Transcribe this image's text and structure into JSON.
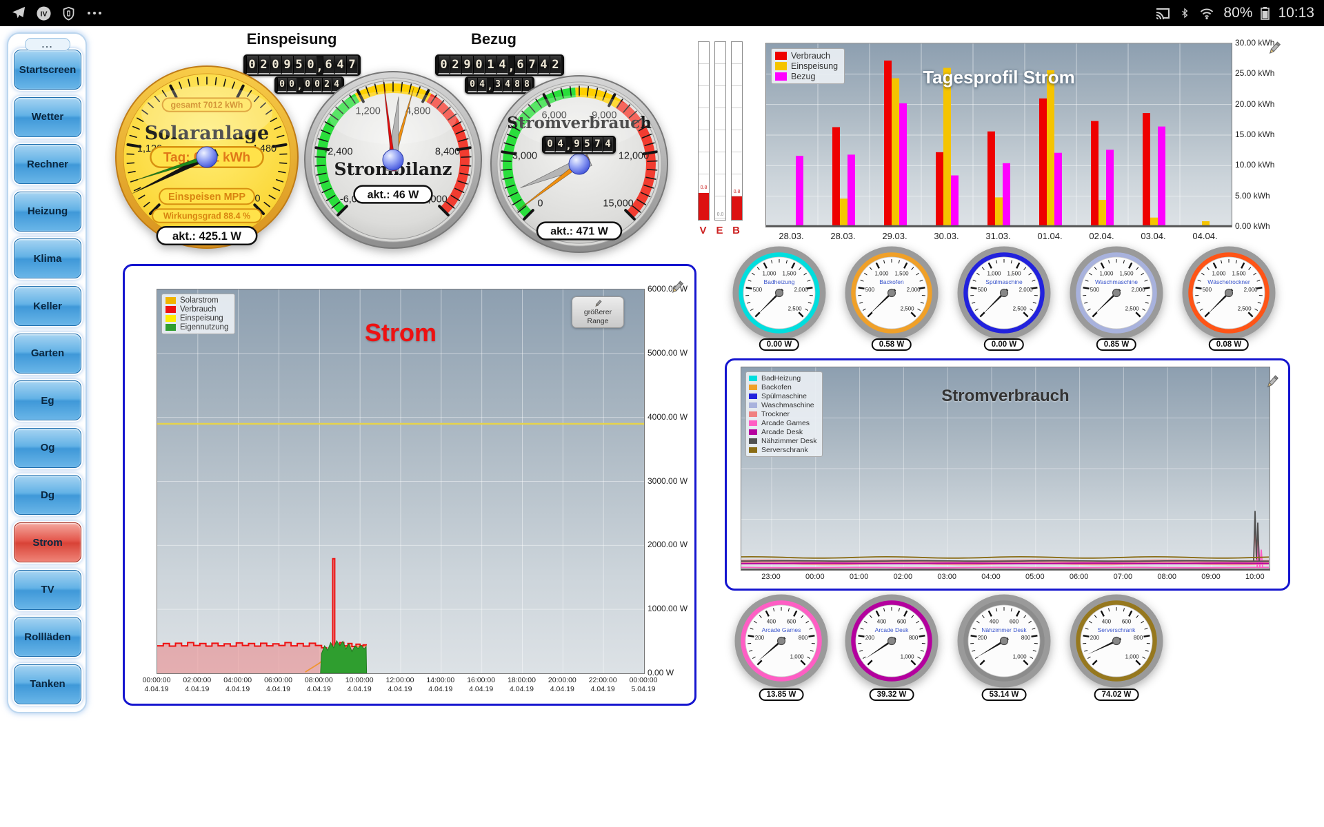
{
  "status_bar": {
    "time": "10:13",
    "battery": "80%",
    "iv_label": "IV",
    "icons_left": [
      "telegram-icon",
      "iv-badge-icon",
      "shield-icon",
      "more-dots-icon"
    ],
    "icons_right": [
      "cast-icon",
      "bluetooth-icon",
      "wifi-icon",
      "battery-icon"
    ]
  },
  "sidebar": {
    "more_label": "...",
    "items": [
      {
        "label": "Startscreen",
        "active": false
      },
      {
        "label": "Wetter",
        "active": false
      },
      {
        "label": "Rechner",
        "active": false
      },
      {
        "label": "Heizung",
        "active": false
      },
      {
        "label": "Klima",
        "active": false
      },
      {
        "label": "Keller",
        "active": false
      },
      {
        "label": "Garten",
        "active": false
      },
      {
        "label": "Eg",
        "active": false
      },
      {
        "label": "Og",
        "active": false
      },
      {
        "label": "Dg",
        "active": false
      },
      {
        "label": "Strom",
        "active": true
      },
      {
        "label": "TV",
        "active": false
      },
      {
        "label": "Rollläden",
        "active": false
      },
      {
        "label": "Tanken",
        "active": false
      }
    ]
  },
  "counters": {
    "einspeisung": {
      "title": "Einspeisung",
      "main": "020950,647",
      "sub": "00,0024"
    },
    "bezug": {
      "title": "Bezug",
      "main": "029014,6742",
      "sub": "04,3488"
    }
  },
  "solar_gauge": {
    "title": "Solaranlage",
    "gesamt": "gesamt 7012 kWh",
    "tag": "Tag: 0.61 kWh",
    "mode": "Einspeisen MPP",
    "wirkungsgrad": "Wirkungsgrad 88.4 %",
    "akt": "akt.: 425.1 W",
    "tick_labels": [
      "0",
      "1,120",
      "2,240",
      "3,360",
      "4,480",
      "5,600"
    ]
  },
  "strombilanz_gauge": {
    "title": "Strombilanz",
    "akt": "akt.: 46 W",
    "tick_labels": [
      "-6,000",
      "-2,400",
      "1,200",
      "4,800",
      "8,400",
      "12,000"
    ]
  },
  "stromverbrauch_gauge": {
    "title": "Stromverbrauch",
    "counter": "04,9574",
    "akt": "akt.: 471 W",
    "tick_labels": [
      "0",
      "3,000",
      "6,000",
      "9,000",
      "12,000",
      "15,000"
    ]
  },
  "mini_bars": {
    "items": [
      {
        "label": "V",
        "value": "0.8",
        "fill_pct": 15
      },
      {
        "label": "E",
        "value": "0.0",
        "fill_pct": 0
      },
      {
        "label": "B",
        "value": "0.8",
        "fill_pct": 13
      }
    ]
  },
  "small_gauges_top": {
    "tick_labels": [
      "500",
      "1,000",
      "1,500",
      "2,000",
      "2,500"
    ],
    "items": [
      {
        "name": "Badheizung",
        "ring": "#00dede",
        "value": "0.00 W",
        "needle_deg": -135
      },
      {
        "name": "Backofen",
        "ring": "#f0a028",
        "value": "0.58 W",
        "needle_deg": -134
      },
      {
        "name": "Spülmaschine",
        "ring": "#2222dd",
        "value": "0.00 W",
        "needle_deg": -135
      },
      {
        "name": "Waschmaschine",
        "ring": "#a8b2dd",
        "value": "0.85 W",
        "needle_deg": -134
      },
      {
        "name": "Wäschetrockner",
        "ring": "#ff5416",
        "value": "0.08 W",
        "needle_deg": -135
      }
    ]
  },
  "small_gauges_bottom": {
    "tick_labels": [
      "200",
      "400",
      "600",
      "800",
      "1,000"
    ],
    "items": [
      {
        "name": "Arcade Games",
        "ring": "#ff5ec4",
        "value": "13.85 W",
        "needle_deg": -131
      },
      {
        "name": "Arcade Desk",
        "ring": "#b4009e",
        "value": "39.32 W",
        "needle_deg": -124
      },
      {
        "name": "Nähzimmer Desk",
        "ring": "#8c8c8c",
        "value": "53.14 W",
        "needle_deg": -121
      },
      {
        "name": "Serverschrank",
        "ring": "#96781e",
        "value": "74.02 W",
        "needle_deg": -115
      }
    ]
  },
  "chart_data": [
    {
      "id": "tagesprofil",
      "type": "bar",
      "title": "Tagesprofil Strom",
      "ylim": [
        0,
        30
      ],
      "ytick_labels": [
        "30.00 kWh",
        "25.00 kWh",
        "20.00 kWh",
        "15.00 kWh",
        "10.00 kWh",
        "5.00 kWh",
        "0.00 kWh"
      ],
      "categories": [
        "28.03.",
        "28.03.",
        "29.03.",
        "30.03.",
        "31.03.",
        "01.04.",
        "02.04.",
        "03.04.",
        "04.04."
      ],
      "legend_position": "top-left",
      "series": [
        {
          "name": "Verbrauch",
          "color": "#ee0000",
          "values": [
            0,
            16.3,
            27.2,
            12.2,
            15.6,
            21.0,
            17.3,
            18.6,
            0
          ]
        },
        {
          "name": "Einspeisung",
          "color": "#f5c400",
          "values": [
            0,
            4.6,
            24.3,
            26.0,
            4.8,
            25.6,
            4.4,
            1.5,
            0.9
          ]
        },
        {
          "name": "Bezug",
          "color": "#ff00ff",
          "values": [
            11.6,
            11.8,
            20.2,
            8.4,
            10.4,
            12.1,
            12.6,
            16.4,
            0
          ]
        }
      ]
    },
    {
      "id": "strom",
      "type": "line",
      "title": "Strom",
      "title_color": "#ee1111",
      "button": "größerer Range",
      "ylim": [
        0,
        6000
      ],
      "ytick_labels": [
        "6000.00 W",
        "5000.00 W",
        "4000.00 W",
        "3000.00 W",
        "2000.00 W",
        "1000.00 W",
        "0.00 W"
      ],
      "xtick_times": [
        "00:00:00",
        "02:00:00",
        "04:00:00",
        "06:00:00",
        "08:00:00",
        "10:00:00",
        "12:00:00",
        "14:00:00",
        "16:00:00",
        "18:00:00",
        "20:00:00",
        "22:00:00",
        "00:00:00"
      ],
      "xtick_dates": [
        "4.04.19",
        "4.04.19",
        "4.04.19",
        "4.04.19",
        "4.04.19",
        "4.04.19",
        "4.04.19",
        "4.04.19",
        "4.04.19",
        "4.04.19",
        "4.04.19",
        "4.04.19",
        "5.04.19"
      ],
      "series": [
        {
          "name": "Solarstrom",
          "color": "#f0b400",
          "kind": "line",
          "points": [
            [
              7.3,
              20
            ],
            [
              8.0,
              160
            ],
            [
              8.6,
              320
            ],
            [
              9.2,
              410
            ],
            [
              10.3,
              430
            ]
          ]
        },
        {
          "name": "Verbrauch",
          "color": "#ee1111",
          "kind": "step",
          "fill": "rgba(238,110,110,0.45)",
          "points": [
            [
              0,
              430
            ],
            [
              0.3,
              465
            ],
            [
              0.6,
              425
            ],
            [
              0.9,
              470
            ],
            [
              1.2,
              430
            ],
            [
              1.5,
              480
            ],
            [
              1.8,
              435
            ],
            [
              2.1,
              465
            ],
            [
              2.4,
              425
            ],
            [
              2.7,
              470
            ],
            [
              3.0,
              430
            ],
            [
              3.3,
              460
            ],
            [
              3.6,
              425
            ],
            [
              3.9,
              475
            ],
            [
              4.2,
              435
            ],
            [
              4.5,
              465
            ],
            [
              4.8,
              425
            ],
            [
              5.1,
              470
            ],
            [
              5.4,
              430
            ],
            [
              5.7,
              460
            ],
            [
              6.0,
              435
            ],
            [
              6.3,
              480
            ],
            [
              6.6,
              430
            ],
            [
              6.9,
              465
            ],
            [
              7.2,
              425
            ],
            [
              7.5,
              470
            ],
            [
              7.8,
              435
            ],
            [
              8.1,
              400
            ],
            [
              8.35,
              340
            ],
            [
              8.55,
              360
            ],
            [
              8.65,
              1790
            ],
            [
              8.75,
              430
            ],
            [
              9.0,
              480
            ],
            [
              9.2,
              430
            ],
            [
              9.4,
              465
            ],
            [
              9.6,
              420
            ],
            [
              9.8,
              455
            ],
            [
              10.0,
              430
            ],
            [
              10.15,
              445
            ],
            [
              10.3,
              435
            ]
          ]
        },
        {
          "name": "Einspeisung",
          "color": "#e6d34a",
          "kind": "hline",
          "value": 3900
        },
        {
          "name": "Eigennutzung",
          "color": "#2f9e2f",
          "kind": "area",
          "points": [
            [
              8.05,
              0
            ],
            [
              8.1,
              310
            ],
            [
              8.25,
              430
            ],
            [
              8.4,
              360
            ],
            [
              8.55,
              480
            ],
            [
              8.7,
              400
            ],
            [
              8.85,
              510
            ],
            [
              9.0,
              430
            ],
            [
              9.15,
              500
            ],
            [
              9.3,
              380
            ],
            [
              9.45,
              460
            ],
            [
              9.6,
              340
            ],
            [
              9.75,
              430
            ],
            [
              9.9,
              390
            ],
            [
              10.05,
              440
            ],
            [
              10.2,
              380
            ],
            [
              10.3,
              420
            ],
            [
              10.32,
              0
            ]
          ]
        }
      ]
    },
    {
      "id": "stromverbrauch",
      "type": "line",
      "title": "Stromverbrauch",
      "ylim": [
        0,
        1200
      ],
      "xtick_labels": [
        "23:00",
        "00:00",
        "01:00",
        "02:00",
        "03:00",
        "04:00",
        "05:00",
        "06:00",
        "07:00",
        "08:00",
        "09:00",
        "10:00"
      ],
      "series": [
        {
          "name": "BadHeizung",
          "color": "#00dede",
          "watts": 1
        },
        {
          "name": "Backofen",
          "color": "#f0a028",
          "watts": 2
        },
        {
          "name": "Spülmaschine",
          "color": "#2222dd",
          "watts": 1
        },
        {
          "name": "Waschmaschine",
          "color": "#a8b2dd",
          "watts": 3
        },
        {
          "name": "Trockner",
          "color": "#f08080",
          "watts": 45,
          "band": true,
          "end_spike": 280
        },
        {
          "name": "Arcade Games",
          "color": "#ff5ec4",
          "watts": 14,
          "end_spike": 150
        },
        {
          "name": "Arcade Desk",
          "color": "#b4009e",
          "watts": 39
        },
        {
          "name": "Nähzimmer Desk",
          "color": "#505050",
          "watts": 53,
          "end_spike": 350
        },
        {
          "name": "Serverschrank",
          "color": "#8a6c14",
          "watts": 74,
          "wobble": 4
        }
      ]
    }
  ]
}
